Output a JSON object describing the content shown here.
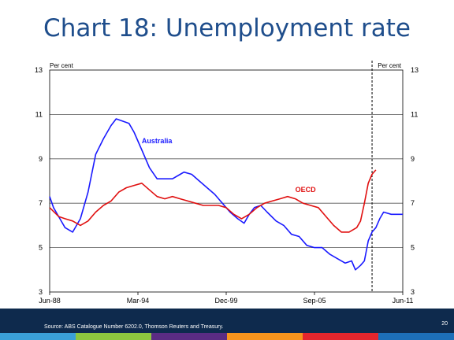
{
  "slide": {
    "title": "Chart 18: Unemployment rate"
  },
  "footer": {
    "source": "Source: ABS Catalogue Number 6202.0, Thomson Reuters and Treasury.",
    "page": "20",
    "stripe_colors": [
      "#3aa0d8",
      "#8cc63f",
      "#5b2c83",
      "#f7941d",
      "#e4262d",
      "#1d6fb8"
    ]
  },
  "chart_data": {
    "type": "line",
    "title": "",
    "ylabel_left": "Per cent",
    "ylabel_right": "Per cent",
    "ylim": [
      3,
      13
    ],
    "yticks": [
      3,
      5,
      7,
      9,
      11,
      13
    ],
    "xlim": [
      "Jun-88",
      "Jun-11"
    ],
    "xticks": [
      "Jun-88",
      "Mar-94",
      "Dec-99",
      "Sep-05",
      "Jun-11"
    ],
    "grid": true,
    "vline_date": "2009-06",
    "series": [
      {
        "name": "Australia",
        "color": "#1a1aff",
        "points": [
          [
            "1988-06",
            7.3
          ],
          [
            "1988-09",
            6.8
          ],
          [
            "1989-01",
            6.4
          ],
          [
            "1989-06",
            5.9
          ],
          [
            "1989-12",
            5.7
          ],
          [
            "1990-06",
            6.3
          ],
          [
            "1990-12",
            7.5
          ],
          [
            "1991-06",
            9.2
          ],
          [
            "1991-12",
            9.9
          ],
          [
            "1992-06",
            10.5
          ],
          [
            "1992-10",
            10.8
          ],
          [
            "1993-03",
            10.7
          ],
          [
            "1993-08",
            10.6
          ],
          [
            "1993-12",
            10.2
          ],
          [
            "1994-06",
            9.4
          ],
          [
            "1994-12",
            8.6
          ],
          [
            "1995-06",
            8.1
          ],
          [
            "1995-12",
            8.1
          ],
          [
            "1996-06",
            8.1
          ],
          [
            "1996-12",
            8.3
          ],
          [
            "1997-03",
            8.4
          ],
          [
            "1997-09",
            8.3
          ],
          [
            "1998-03",
            8.0
          ],
          [
            "1998-09",
            7.7
          ],
          [
            "1999-03",
            7.4
          ],
          [
            "1999-09",
            7.0
          ],
          [
            "2000-03",
            6.6
          ],
          [
            "2000-09",
            6.3
          ],
          [
            "2001-02",
            6.1
          ],
          [
            "2001-06",
            6.5
          ],
          [
            "2001-10",
            6.8
          ],
          [
            "2002-03",
            6.9
          ],
          [
            "2002-08",
            6.6
          ],
          [
            "2003-03",
            6.2
          ],
          [
            "2003-09",
            6.0
          ],
          [
            "2004-03",
            5.6
          ],
          [
            "2004-09",
            5.5
          ],
          [
            "2005-03",
            5.1
          ],
          [
            "2005-09",
            5.0
          ],
          [
            "2006-03",
            5.0
          ],
          [
            "2006-09",
            4.7
          ],
          [
            "2007-03",
            4.5
          ],
          [
            "2007-09",
            4.3
          ],
          [
            "2008-02",
            4.4
          ],
          [
            "2008-05",
            4.0
          ],
          [
            "2008-09",
            4.2
          ],
          [
            "2008-12",
            4.4
          ],
          [
            "2009-03",
            5.3
          ],
          [
            "2009-06",
            5.7
          ],
          [
            "2009-09",
            5.9
          ],
          [
            "2009-12",
            6.3
          ],
          [
            "2010-03",
            6.6
          ],
          [
            "2010-09",
            6.5
          ],
          [
            "2011-06",
            6.5
          ]
        ]
      },
      {
        "name": "OECD",
        "color": "#e01010",
        "points": [
          [
            "1988-06",
            6.8
          ],
          [
            "1989-01",
            6.4
          ],
          [
            "1989-06",
            6.3
          ],
          [
            "1989-12",
            6.2
          ],
          [
            "1990-06",
            6.0
          ],
          [
            "1990-12",
            6.2
          ],
          [
            "1991-06",
            6.6
          ],
          [
            "1991-12",
            6.9
          ],
          [
            "1992-06",
            7.1
          ],
          [
            "1992-12",
            7.5
          ],
          [
            "1993-06",
            7.7
          ],
          [
            "1993-12",
            7.8
          ],
          [
            "1994-06",
            7.9
          ],
          [
            "1994-12",
            7.6
          ],
          [
            "1995-06",
            7.3
          ],
          [
            "1995-12",
            7.2
          ],
          [
            "1996-06",
            7.3
          ],
          [
            "1996-12",
            7.2
          ],
          [
            "1997-06",
            7.1
          ],
          [
            "1997-12",
            7.0
          ],
          [
            "1998-06",
            6.9
          ],
          [
            "1998-12",
            6.9
          ],
          [
            "1999-06",
            6.9
          ],
          [
            "1999-12",
            6.8
          ],
          [
            "2000-06",
            6.5
          ],
          [
            "2000-12",
            6.3
          ],
          [
            "2001-06",
            6.5
          ],
          [
            "2001-12",
            6.8
          ],
          [
            "2002-06",
            7.0
          ],
          [
            "2002-12",
            7.1
          ],
          [
            "2003-06",
            7.2
          ],
          [
            "2003-12",
            7.3
          ],
          [
            "2004-06",
            7.2
          ],
          [
            "2004-12",
            7.0
          ],
          [
            "2005-06",
            6.9
          ],
          [
            "2005-12",
            6.8
          ],
          [
            "2006-06",
            6.4
          ],
          [
            "2006-12",
            6.0
          ],
          [
            "2007-06",
            5.7
          ],
          [
            "2007-12",
            5.7
          ],
          [
            "2008-06",
            5.9
          ],
          [
            "2008-09",
            6.2
          ],
          [
            "2008-12",
            7.0
          ],
          [
            "2009-03",
            7.9
          ],
          [
            "2009-06",
            8.3
          ],
          [
            "2009-09",
            8.5
          ]
        ]
      }
    ],
    "annotations": [
      {
        "text": "Australia",
        "date": "1994-06",
        "value": 9.7,
        "color": "#1a1aff"
      },
      {
        "text": "OECD",
        "date": "2004-06",
        "value": 7.5,
        "color": "#e01010"
      }
    ]
  }
}
